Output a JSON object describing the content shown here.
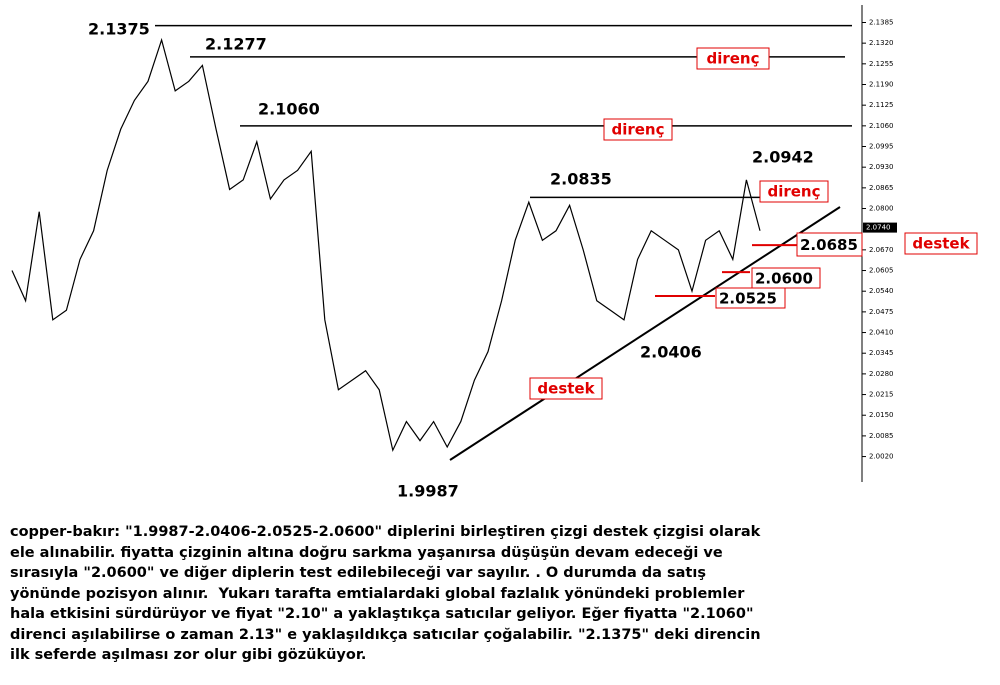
{
  "chart_data": {
    "type": "line",
    "color": "#000000",
    "values": [
      2.0605,
      2.051,
      2.079,
      2.045,
      2.048,
      2.064,
      2.073,
      2.092,
      2.105,
      2.114,
      2.12,
      2.133,
      2.117,
      2.12,
      2.125,
      2.105,
      2.086,
      2.089,
      2.101,
      2.083,
      2.089,
      2.092,
      2.098,
      2.045,
      2.023,
      2.026,
      2.029,
      2.023,
      2.004,
      2.013,
      2.007,
      2.013,
      2.005,
      2.013,
      2.026,
      2.035,
      2.051,
      2.07,
      2.082,
      2.07,
      2.073,
      2.081,
      2.067,
      2.051,
      2.048,
      2.045,
      2.064,
      2.073,
      2.07,
      2.067,
      2.054,
      2.07,
      2.073,
      2.064,
      2.089,
      2.073
    ],
    "ylim": [
      1.994,
      2.144
    ],
    "yticks": [
      {
        "value": 2.1385,
        "label": "2.1385"
      },
      {
        "value": 2.132,
        "label": "2.1320"
      },
      {
        "value": 2.1255,
        "label": "2.1255"
      },
      {
        "value": 2.119,
        "label": "2.1190"
      },
      {
        "value": 2.1125,
        "label": "2.1125"
      },
      {
        "value": 2.106,
        "label": "2.1060"
      },
      {
        "value": 2.0995,
        "label": "2.0995"
      },
      {
        "value": 2.093,
        "label": "2.0930"
      },
      {
        "value": 2.0865,
        "label": "2.0865"
      },
      {
        "value": 2.08,
        "label": "2.0800"
      },
      {
        "value": 2.067,
        "label": "2.0670"
      },
      {
        "value": 2.0605,
        "label": "2.0605"
      },
      {
        "value": 2.054,
        "label": "2.0540"
      },
      {
        "value": 2.0475,
        "label": "2.0475"
      },
      {
        "value": 2.041,
        "label": "2.0410"
      },
      {
        "value": 2.0345,
        "label": "2.0345"
      },
      {
        "value": 2.028,
        "label": "2.0280"
      },
      {
        "value": 2.0215,
        "label": "2.0215"
      },
      {
        "value": 2.015,
        "label": "2.0150"
      },
      {
        "value": 2.0085,
        "label": "2.0085"
      },
      {
        "value": 2.002,
        "label": "2.0020"
      }
    ],
    "current_price": {
      "value": 2.074,
      "label": "2.0740"
    },
    "resistance_levels": [
      {
        "value": 2.1375,
        "label": "2.1375"
      },
      {
        "value": 2.1277,
        "label": "2.1277"
      },
      {
        "value": 2.106,
        "label": "2.1060"
      },
      {
        "value": 2.0835,
        "label": "2.0835"
      }
    ],
    "support_levels": [
      {
        "value": 2.0685,
        "label": "2.0685"
      },
      {
        "value": 2.06,
        "label": "2.0600"
      },
      {
        "value": 2.0525,
        "label": "2.0525"
      }
    ],
    "point_labels": [
      {
        "value": 2.0942,
        "label": "2.0942"
      },
      {
        "value": 2.0406,
        "label": "2.0406"
      },
      {
        "value": 1.9987,
        "label": "1.9987"
      }
    ],
    "zone_labels": [
      "direnç",
      "direnç",
      "direnç",
      "destek",
      "destek"
    ]
  },
  "caption": [
    "copper-bakır: \"1.9987-2.0406-2.0525-2.0600\" diplerini birleştiren çizgi destek çizgisi olarak",
    "ele alınabilir. fiyatta çizginin altına doğru sarkma yaşanırsa düşüşün devam edeceği ve",
    "sırasıyla \"2.0600\" ve diğer diplerin test edilebileceği var sayılır. . O durumda da satış",
    "yönünde pozisyon alınır.  Yukarı tarafta emtialardaki global fazlalık yönündeki problemler",
    "hala etkisini sürdürüyor ve fiyat \"2.10\" a yaklaştıkça satıcılar geliyor. Eğer fiyatta \"2.1060\"",
    "direnci aşılabilirse o zaman 2.13\" e yaklaşıldıkça satıcılar çoğalabilir. \"2.1375\" deki direncin",
    "ilk seferde aşılması zor olur gibi gözüküyor."
  ]
}
